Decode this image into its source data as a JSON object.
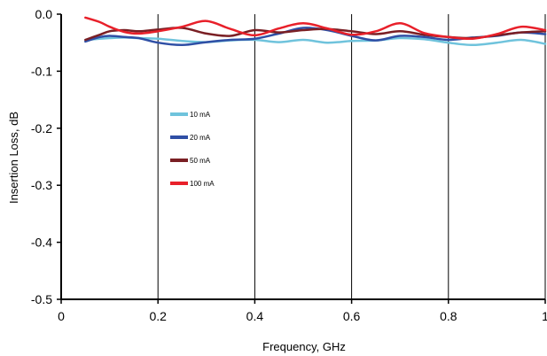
{
  "chart_data": {
    "type": "line",
    "title": "",
    "xlabel": "Frequency, GHz",
    "ylabel": "Insertion Loss, dB",
    "xlim": [
      0,
      1
    ],
    "ylim": [
      -0.5,
      0
    ],
    "x_ticks": [
      0,
      0.2,
      0.4,
      0.6,
      0.8,
      1
    ],
    "x_tick_labels": [
      "0",
      "0.2",
      "0.4",
      "0.6",
      "0.8",
      "1"
    ],
    "y_ticks": [
      0,
      -0.1,
      -0.2,
      -0.3,
      -0.4,
      -0.5
    ],
    "y_tick_labels": [
      "0.0",
      "-0.1",
      "-0.2",
      "-0.3",
      "-0.4",
      "-0.5"
    ],
    "grid": "vertical",
    "legend_position": "center-left",
    "series": [
      {
        "name": "10 mA",
        "color": "#6fc3dc",
        "x": [
          0.05,
          0.08,
          0.1,
          0.13,
          0.16,
          0.2,
          0.25,
          0.3,
          0.35,
          0.4,
          0.45,
          0.5,
          0.55,
          0.6,
          0.65,
          0.7,
          0.75,
          0.8,
          0.85,
          0.9,
          0.95,
          1.0
        ],
        "y": [
          -0.045,
          -0.043,
          -0.042,
          -0.041,
          -0.042,
          -0.043,
          -0.047,
          -0.049,
          -0.046,
          -0.045,
          -0.049,
          -0.045,
          -0.05,
          -0.047,
          -0.046,
          -0.042,
          -0.044,
          -0.05,
          -0.054,
          -0.05,
          -0.045,
          -0.052
        ]
      },
      {
        "name": "20 mA",
        "color": "#2f4fa5",
        "x": [
          0.05,
          0.08,
          0.1,
          0.13,
          0.16,
          0.2,
          0.25,
          0.3,
          0.35,
          0.4,
          0.45,
          0.5,
          0.55,
          0.6,
          0.65,
          0.7,
          0.75,
          0.8,
          0.85,
          0.9,
          0.95,
          1.0
        ],
        "y": [
          -0.048,
          -0.04,
          -0.038,
          -0.04,
          -0.042,
          -0.05,
          -0.054,
          -0.049,
          -0.045,
          -0.043,
          -0.034,
          -0.024,
          -0.028,
          -0.038,
          -0.046,
          -0.038,
          -0.04,
          -0.045,
          -0.041,
          -0.038,
          -0.032,
          -0.035
        ]
      },
      {
        "name": "50 mA",
        "color": "#7a1f24",
        "x": [
          0.05,
          0.08,
          0.1,
          0.13,
          0.16,
          0.2,
          0.25,
          0.3,
          0.35,
          0.4,
          0.45,
          0.5,
          0.55,
          0.6,
          0.65,
          0.7,
          0.75,
          0.8,
          0.85,
          0.9,
          0.95,
          1.0
        ],
        "y": [
          -0.045,
          -0.036,
          -0.03,
          -0.028,
          -0.03,
          -0.027,
          -0.024,
          -0.034,
          -0.038,
          -0.028,
          -0.032,
          -0.028,
          -0.026,
          -0.03,
          -0.035,
          -0.03,
          -0.036,
          -0.04,
          -0.042,
          -0.037,
          -0.032,
          -0.03
        ]
      },
      {
        "name": "100 mA",
        "color": "#e8202a",
        "x": [
          0.05,
          0.08,
          0.1,
          0.13,
          0.16,
          0.2,
          0.25,
          0.3,
          0.35,
          0.4,
          0.45,
          0.5,
          0.55,
          0.6,
          0.65,
          0.7,
          0.75,
          0.8,
          0.85,
          0.9,
          0.95,
          1.0
        ],
        "y": [
          -0.006,
          -0.014,
          -0.022,
          -0.031,
          -0.034,
          -0.03,
          -0.022,
          -0.012,
          -0.026,
          -0.037,
          -0.025,
          -0.016,
          -0.025,
          -0.036,
          -0.03,
          -0.016,
          -0.033,
          -0.04,
          -0.043,
          -0.035,
          -0.022,
          -0.028
        ]
      }
    ]
  }
}
